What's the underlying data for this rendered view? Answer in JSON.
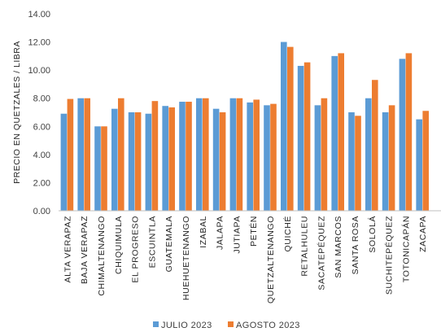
{
  "chart_data": {
    "type": "bar",
    "ylabel": "PRECIO EN QUETZALES / LIBRA",
    "xlabel": "",
    "title": "",
    "ylim": [
      0,
      14
    ],
    "yticks": [
      "0.00",
      "2.00",
      "4.00",
      "6.00",
      "8.00",
      "10.00",
      "12.00",
      "14.00"
    ],
    "grid": false,
    "legend_position": "bottom",
    "categories": [
      "ALTA VERAPAZ",
      "BAJA VERAPAZ",
      "CHIMALTENANGO",
      "CHIQUIMULA",
      "EL PROGRESO",
      "ESCUINTLA",
      "GUATEMALA",
      "HUEHUETENANGO",
      "IZABAL",
      "JALAPA",
      "JUTIAPA",
      "PETÉN",
      "QUETZALTENANGO",
      "QUICHÉ",
      "RETALHULEU",
      "SACATEPÉQUEZ",
      "SAN MARCOS",
      "SANTA ROSA",
      "SOLOLÁ",
      "SUCHITEPÉQUEZ",
      "TOTONICAPÁN",
      "ZACAPA"
    ],
    "series": [
      {
        "name": "JULIO 2023",
        "color": "#5B9BD5",
        "values": [
          6.9,
          8.0,
          6.0,
          7.25,
          7.0,
          6.9,
          7.45,
          7.75,
          8.0,
          7.25,
          8.0,
          7.7,
          7.5,
          12.0,
          10.3,
          7.5,
          11.0,
          7.0,
          8.0,
          7.0,
          10.8,
          6.5
        ]
      },
      {
        "name": "AGOSTO 2023",
        "color": "#ED7D31",
        "values": [
          7.95,
          8.0,
          6.0,
          8.0,
          7.0,
          7.8,
          7.35,
          7.75,
          8.0,
          7.0,
          8.0,
          7.9,
          7.6,
          11.65,
          10.55,
          8.0,
          11.2,
          6.75,
          9.3,
          7.5,
          11.2,
          7.1
        ]
      }
    ]
  }
}
